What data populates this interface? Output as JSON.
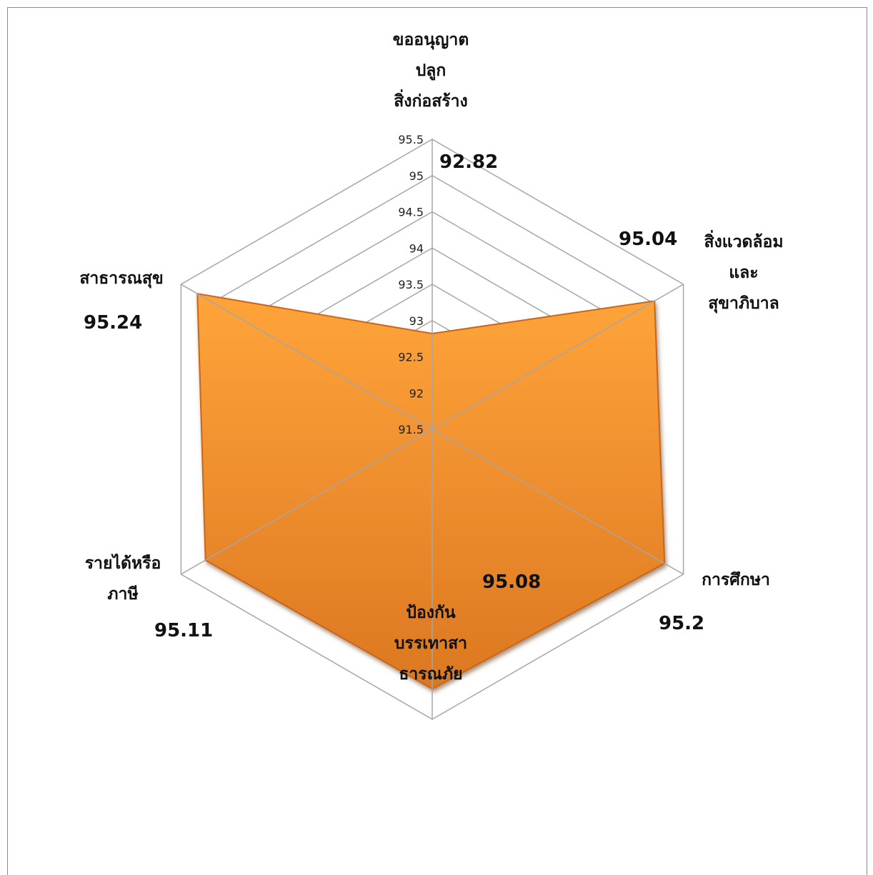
{
  "chart_data": {
    "type": "radar",
    "categories": [
      [
        "ขออนุญาต",
        "ปลูก",
        "สิ่งก่อสร้าง"
      ],
      [
        "สิ่งแวดล้อม",
        "และ",
        "สุขาภิบาล"
      ],
      [
        "การศึกษา"
      ],
      [
        "ป้องกัน",
        "บรรเทาสา",
        "ธารณภัย"
      ],
      [
        "รายได้หรือ",
        "ภาษี"
      ],
      [
        "สาธารณสุข"
      ]
    ],
    "values": [
      92.82,
      95.04,
      95.2,
      95.08,
      95.11,
      95.24
    ],
    "data_labels": [
      "92.82",
      "95.04",
      "95.2",
      "95.08",
      "95.11",
      "95.24"
    ],
    "r_axis": {
      "min": 91.5,
      "max": 95.5,
      "ticks": [
        91.5,
        92,
        92.5,
        93,
        93.5,
        94,
        94.5,
        95,
        95.5
      ],
      "tick_labels": [
        "91.5",
        "92",
        "92.5",
        "93",
        "93.5",
        "94",
        "94.5",
        "95",
        "95.5"
      ]
    },
    "grid": true,
    "legend": "none",
    "fill_color": "#f7942e",
    "fill_color_dark": "#dc7721",
    "grid_color": "#a6a6a6"
  }
}
